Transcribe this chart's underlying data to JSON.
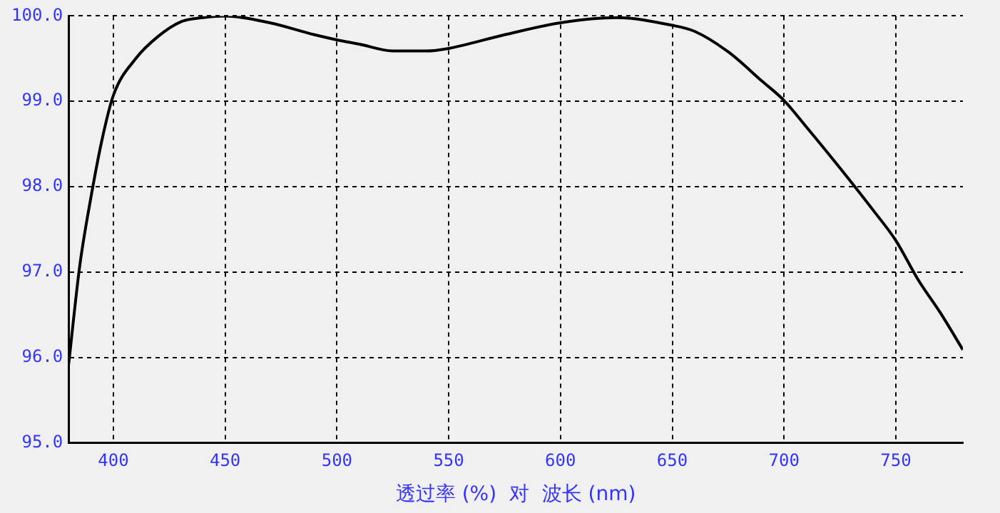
{
  "chart_data": {
    "type": "line",
    "xlabel": "透过率 (%)  对  波长 (nm)",
    "series": [
      {
        "color": "#000000",
        "x": [
          380,
          385,
          390,
          395,
          400,
          410,
          420,
          430,
          440,
          450,
          470,
          490,
          500,
          510,
          525,
          540,
          550,
          575,
          600,
          625,
          650,
          660,
          675,
          690,
          700,
          710,
          725,
          740,
          750,
          760,
          770,
          780
        ],
        "values": [
          95.92,
          97.08,
          97.88,
          98.56,
          99.07,
          99.5,
          99.76,
          99.93,
          99.98,
          100.0,
          99.92,
          99.78,
          99.72,
          99.67,
          99.59,
          99.59,
          99.62,
          99.78,
          99.92,
          99.98,
          99.89,
          99.82,
          99.58,
          99.24,
          99.01,
          98.7,
          98.22,
          97.72,
          97.37,
          96.91,
          96.52,
          96.09
        ]
      }
    ],
    "xlim": [
      380,
      780
    ],
    "xticks": [
      400,
      450,
      500,
      550,
      600,
      650,
      700,
      750
    ],
    "ylim": [
      95,
      100
    ],
    "yticks": [
      {
        "value": 95,
        "label": "95.0"
      },
      {
        "value": 96,
        "label": "96.0"
      },
      {
        "value": 97,
        "label": "97.0"
      },
      {
        "value": 98,
        "label": "98.0"
      },
      {
        "value": 99,
        "label": "99.0"
      },
      {
        "value": 100,
        "label": "100.0"
      }
    ],
    "grid": true,
    "legend": false,
    "marker": "none",
    "line_style": "solid"
  }
}
